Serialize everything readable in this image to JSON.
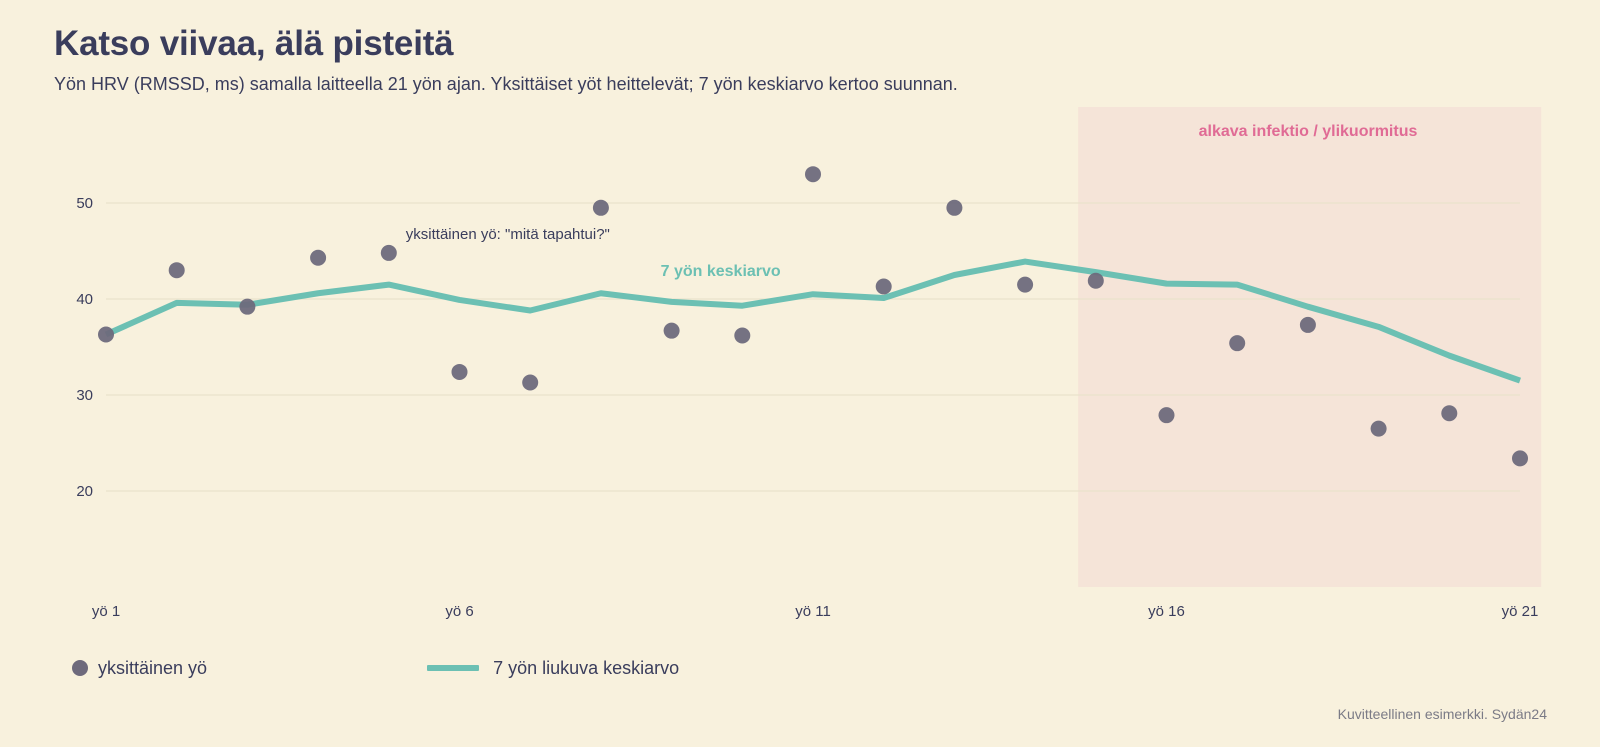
{
  "header": {
    "title": "Katso viivaa, älä pisteitä",
    "subtitle": "Yön HRV (RMSSD, ms) samalla laitteella 21 yön ajan. Yksittäiset yöt heittelevät; 7 yön keskiarvo kertoo suunnan."
  },
  "footer": {
    "source": "Kuvitteellinen esimerkki. Sydän24"
  },
  "legend": {
    "points_label": "yksittäinen yö",
    "line_label": "7 yön liukuva keskiarvo"
  },
  "colors": {
    "background": "#f8f1dd",
    "points": "#6e6a7c",
    "line": "#6cc0b3",
    "region": "#f5e4d8",
    "region_label": "#e06b95",
    "gridline": "#e9e2cc",
    "text": "#3a3d5c"
  },
  "chart_data": {
    "type": "line",
    "x": [
      1,
      2,
      3,
      4,
      5,
      6,
      7,
      8,
      9,
      10,
      11,
      12,
      13,
      14,
      15,
      16,
      17,
      18,
      19,
      20,
      21
    ],
    "x_ticks": [
      1,
      6,
      11,
      16,
      21
    ],
    "x_tick_labels": [
      "yö 1",
      "yö 6",
      "yö 11",
      "yö 16",
      "yö 21"
    ],
    "y_ticks": [
      20,
      30,
      40,
      50
    ],
    "y_tick_labels": [
      "20",
      "30",
      "40",
      "50"
    ],
    "xlim": [
      1,
      21
    ],
    "ylim": [
      10,
      60
    ],
    "grid": "horizontal",
    "legend_position": "bottom-left",
    "series": [
      {
        "name": "yksittäinen yö",
        "type": "scatter",
        "values": [
          36.3,
          43.0,
          39.2,
          44.3,
          44.8,
          32.4,
          31.3,
          49.5,
          36.7,
          36.2,
          53.0,
          41.3,
          49.5,
          41.5,
          41.9,
          27.9,
          35.4,
          37.3,
          26.5,
          28.1,
          23.4
        ]
      },
      {
        "name": "7 yön liukuva keskiarvo",
        "type": "line",
        "values": [
          36.3,
          39.6,
          39.4,
          40.6,
          41.5,
          39.9,
          38.8,
          40.6,
          39.7,
          39.3,
          40.5,
          40.1,
          42.5,
          43.9,
          42.8,
          41.6,
          41.5,
          39.2,
          37.1,
          34.1,
          31.5
        ]
      }
    ],
    "highlight_region": {
      "x_start": 14.75,
      "x_end": 21.3,
      "label": "alkava infektio / ylikuormitus"
    },
    "annotations": [
      {
        "text": "yksittäinen yö: \"mitä tapahtui?\"",
        "target": "point",
        "x": 5,
        "y": 44.8
      },
      {
        "text": "7 yön keskiarvo",
        "target": "line",
        "x": 9.1,
        "y": 42.2
      }
    ]
  }
}
